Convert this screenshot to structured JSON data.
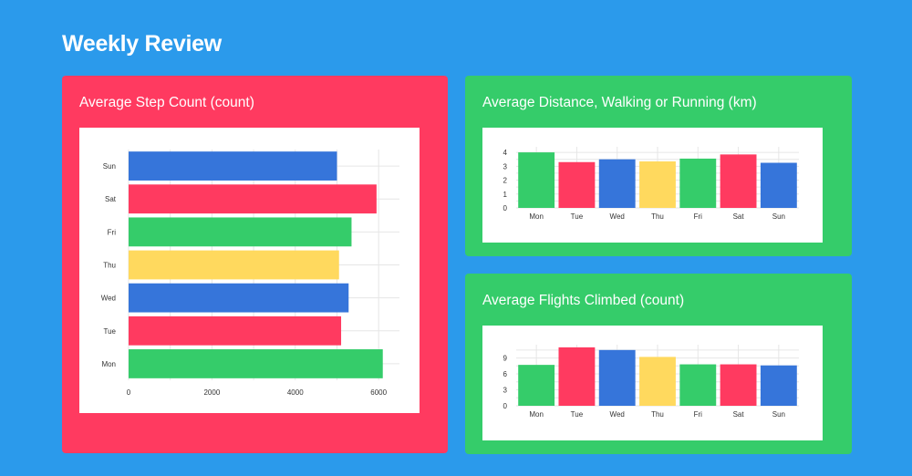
{
  "page": {
    "title": "Weekly Review"
  },
  "colors": {
    "background": "#2b9aeb",
    "green": "#35cc6a",
    "red": "#ff3a60",
    "blue": "#3675da",
    "yellow": "#ffd95e",
    "card_red": "#ff3a60",
    "card_green": "#35cc6a"
  },
  "cards": {
    "steps": {
      "title": "Average Step Count (count)"
    },
    "distance": {
      "title": "Average Distance, Walking or Running (km)"
    },
    "flights": {
      "title": "Average Flights Climbed (count)"
    }
  },
  "chart_data": [
    {
      "id": "steps",
      "type": "bar",
      "orientation": "horizontal",
      "categories": [
        "Mon",
        "Tue",
        "Wed",
        "Thu",
        "Fri",
        "Sat",
        "Sun"
      ],
      "values": [
        6100,
        5100,
        5280,
        5050,
        5350,
        5950,
        5000
      ],
      "bar_colors": [
        "green",
        "red",
        "blue",
        "yellow",
        "green",
        "red",
        "blue"
      ],
      "xlim": [
        0,
        6500
      ],
      "xticks": [
        0,
        2000,
        4000,
        6000
      ],
      "grid": true
    },
    {
      "id": "distance",
      "type": "bar",
      "orientation": "vertical",
      "categories": [
        "Mon",
        "Tue",
        "Wed",
        "Thu",
        "Fri",
        "Sat",
        "Sun"
      ],
      "values": [
        4.0,
        3.3,
        3.5,
        3.35,
        3.55,
        3.85,
        3.25
      ],
      "bar_colors": [
        "green",
        "red",
        "blue",
        "yellow",
        "green",
        "red",
        "blue"
      ],
      "ylim": [
        0,
        4.4
      ],
      "yticks": [
        0,
        1,
        2,
        3,
        4
      ],
      "grid": true
    },
    {
      "id": "flights",
      "type": "bar",
      "orientation": "vertical",
      "categories": [
        "Mon",
        "Tue",
        "Wed",
        "Thu",
        "Fri",
        "Sat",
        "Sun"
      ],
      "values": [
        7.7,
        11.0,
        10.5,
        9.2,
        7.8,
        7.8,
        7.6
      ],
      "bar_colors": [
        "green",
        "red",
        "blue",
        "yellow",
        "green",
        "red",
        "blue"
      ],
      "ylim": [
        0,
        11.5
      ],
      "yticks": [
        0,
        3,
        6,
        9
      ],
      "grid": true
    }
  ]
}
